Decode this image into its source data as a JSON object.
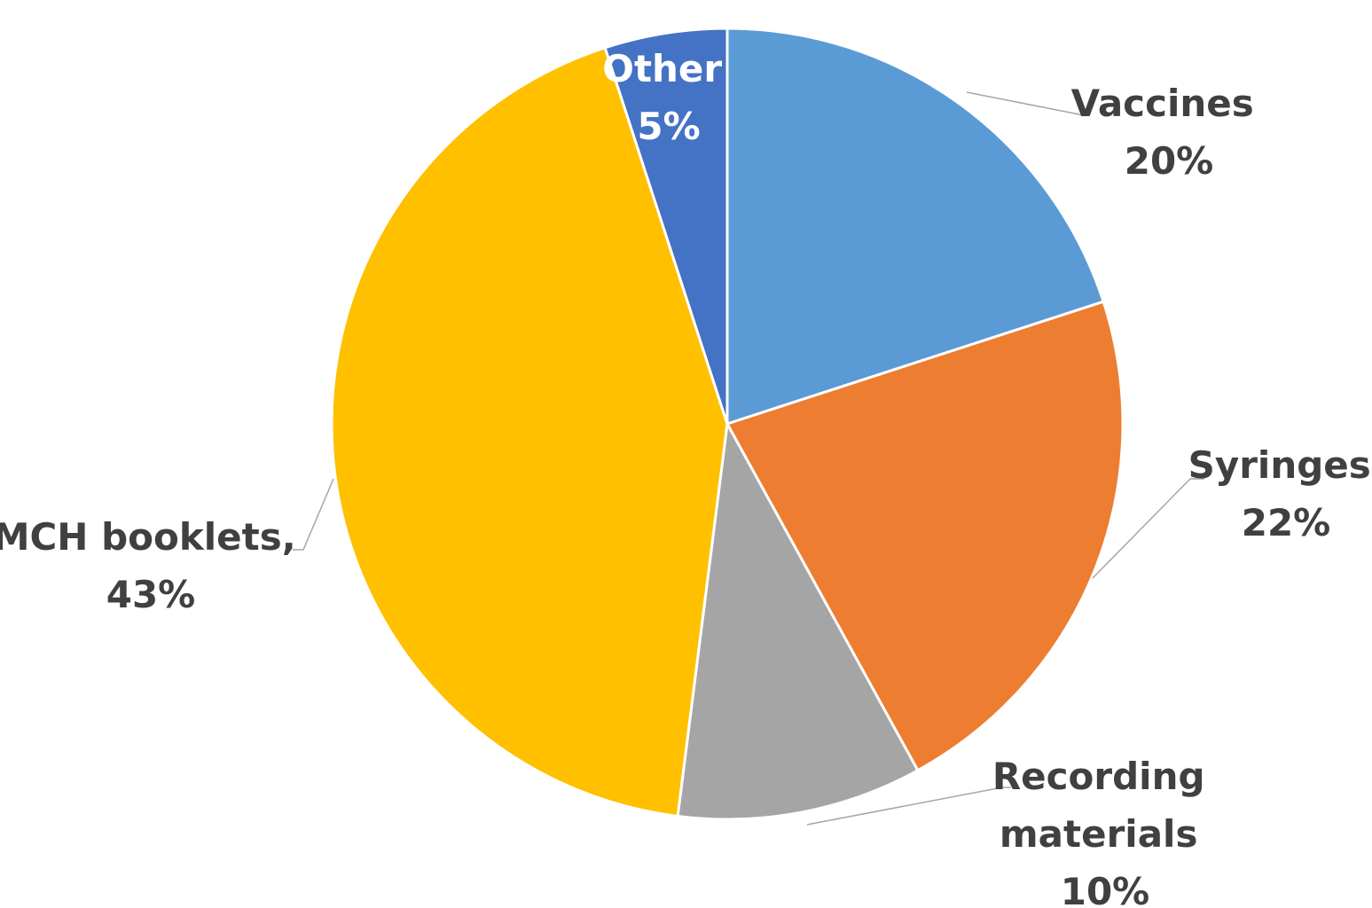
{
  "chart_data": {
    "type": "pie",
    "title": "",
    "slices": [
      {
        "label": "Vaccines",
        "value_label": "20%",
        "value": 20,
        "color": "#5b9bd5",
        "label_color": "#404040"
      },
      {
        "label": "Syringes",
        "value_label": "22%",
        "value": 22,
        "color": "#ed7d31",
        "label_color": "#404040"
      },
      {
        "label": "Recording materials",
        "label_lines": [
          "Recording",
          "materials"
        ],
        "value_label": "10%",
        "value": 10,
        "color": "#a5a5a5",
        "label_color": "#404040"
      },
      {
        "label": "MCH booklets,",
        "value_label": "43%",
        "value": 43,
        "color": "#ffc000",
        "label_color": "#404040"
      },
      {
        "label": "Other",
        "value_label": "5%",
        "value": 5,
        "color": "#4472c4",
        "label_color": "#ffffff"
      }
    ],
    "start_angle": "12 o'clock",
    "direction": "clockwise",
    "legend": "none"
  }
}
